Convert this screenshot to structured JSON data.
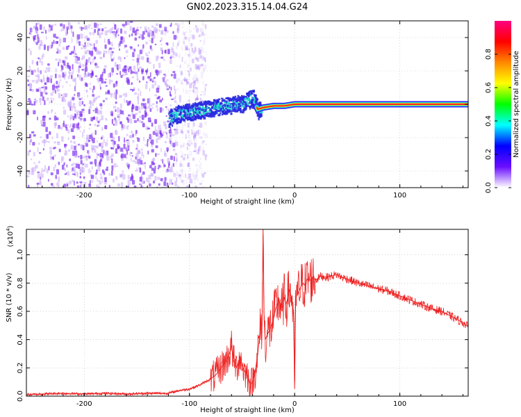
{
  "title": "GN02.2023.315.14.04.G24",
  "colors": {
    "snr_line": "#ee2222",
    "spectrum_low": "#7b2cf0",
    "spectrum_core": "#22ddcc",
    "spectrum_peak": "#ff2222"
  },
  "chart_data": [
    {
      "type": "heatmap",
      "panel": "spectrogram",
      "xlabel": "Height of straight line (km)",
      "ylabel": "Frequency (Hz)",
      "xlim": [
        -255,
        165
      ],
      "ylim": [
        -50,
        50
      ],
      "xticks": [
        -200,
        -100,
        0,
        100
      ],
      "xtick_labels": [
        "-200",
        "-100",
        "0",
        "100"
      ],
      "yticks": [
        -40,
        -20,
        0,
        20,
        40
      ],
      "ytick_labels": [
        "-40",
        "-20",
        "0",
        "20",
        "40"
      ],
      "grid": true,
      "noise_region_x": [
        -255,
        -115
      ],
      "signal_track": {
        "x": [
          -120,
          -110,
          -100,
          -90,
          -80,
          -70,
          -60,
          -50,
          -45,
          -40,
          -35,
          -30,
          -20,
          -10,
          0,
          50,
          100,
          165
        ],
        "y": [
          -8,
          -5,
          -4,
          -3,
          -2,
          -1,
          0,
          1,
          3,
          4,
          -3,
          -2,
          -1,
          -1,
          0,
          0,
          0,
          0
        ]
      },
      "colorbar": {
        "label": "Normalized spectral amplitude",
        "range": [
          0,
          1
        ],
        "ticks": [
          0.0,
          0.2,
          0.4,
          0.6,
          0.8
        ],
        "tick_labels": [
          "0.0",
          "0.2",
          "0.4",
          "0.6",
          "0.8"
        ],
        "stops": [
          "#ffffff",
          "#6a0dff",
          "#0000ff",
          "#00ffff",
          "#00ff00",
          "#ffff00",
          "#ff8800",
          "#ff0000",
          "#ff0080"
        ]
      }
    },
    {
      "type": "line",
      "panel": "snr",
      "xlabel": "Height of straight line (km)",
      "ylabel": "SNR (10 * v/v)",
      "scale_label": "(x10",
      "scale_exp": "4",
      "scale_close": ")",
      "xlim": [
        -255,
        165
      ],
      "ylim": [
        0,
        1.18
      ],
      "xticks": [
        -200,
        -100,
        0,
        100
      ],
      "xtick_labels": [
        "-200",
        "-100",
        "0",
        "100"
      ],
      "yticks": [
        0.0,
        0.2,
        0.4,
        0.6,
        0.8,
        1.0
      ],
      "ytick_labels": [
        "0.0",
        "0.2",
        "0.4",
        "0.6",
        "0.8",
        "1.0"
      ],
      "grid": true,
      "series": [
        {
          "x": [
            -255,
            -240,
            -220,
            -200,
            -180,
            -160,
            -140,
            -120,
            -110,
            -100,
            -90,
            -80,
            -75,
            -70,
            -65,
            -62,
            -60,
            -58,
            -55,
            -52,
            -50,
            -48,
            -45,
            -42,
            -40,
            -38,
            -35,
            -33,
            -31,
            -30,
            -29,
            -28,
            -25,
            -22,
            -20,
            -18,
            -15,
            -12,
            -10,
            -8,
            -5,
            -3,
            -1,
            0,
            1,
            3,
            5,
            8,
            10,
            12,
            15,
            18,
            20,
            25,
            30,
            35,
            40,
            45,
            50,
            60,
            70,
            80,
            90,
            100,
            110,
            120,
            130,
            140,
            150,
            160,
            165
          ],
          "y": [
            0.01,
            0.015,
            0.02,
            0.015,
            0.02,
            0.015,
            0.02,
            0.02,
            0.04,
            0.05,
            0.08,
            0.12,
            0.15,
            0.2,
            0.25,
            0.3,
            0.36,
            0.25,
            0.2,
            0.28,
            0.22,
            0.18,
            0.15,
            0.08,
            0.1,
            0.15,
            0.3,
            0.45,
            0.5,
            1.18,
            0.55,
            0.4,
            0.45,
            0.5,
            0.55,
            0.62,
            0.68,
            0.6,
            0.7,
            0.65,
            0.75,
            0.7,
            0.6,
            0.05,
            0.7,
            0.72,
            0.76,
            0.8,
            0.78,
            0.83,
            0.82,
            0.84,
            0.82,
            0.85,
            0.84,
            0.85,
            0.86,
            0.84,
            0.83,
            0.8,
            0.78,
            0.76,
            0.74,
            0.71,
            0.68,
            0.65,
            0.62,
            0.6,
            0.56,
            0.52,
            0.49
          ]
        }
      ]
    }
  ]
}
